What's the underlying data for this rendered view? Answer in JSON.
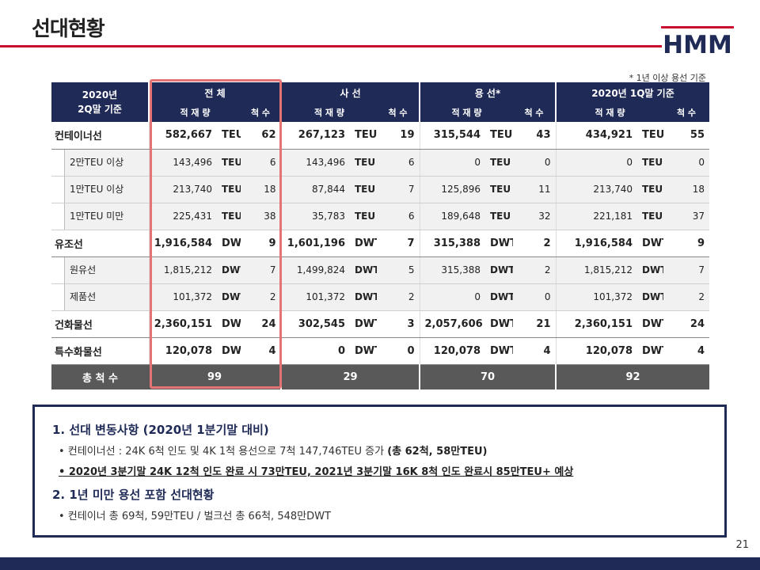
{
  "title": "선대현황",
  "logo_text": "HMM",
  "note": "* 1년 이상 용선 기준",
  "header": {
    "col1_line1": "2020년",
    "col1_line2": "2Q말 기준",
    "groups": [
      "전 체",
      "사 선",
      "용 선*",
      "2020년 1Q말 기준"
    ],
    "sub_capacity": "적 재 량",
    "sub_ships": "척 수"
  },
  "rows": [
    {
      "label": "컨테이너선",
      "type": "major",
      "cells": [
        {
          "v": "582,667",
          "u": "TEU",
          "n": "62"
        },
        {
          "v": "267,123",
          "u": "TEU",
          "n": "19"
        },
        {
          "v": "315,544",
          "u": "TEU",
          "n": "43"
        },
        {
          "v": "434,921",
          "u": "TEU",
          "n": "55"
        }
      ]
    },
    {
      "label": "2만TEU 이상",
      "type": "minor",
      "cells": [
        {
          "v": "143,496",
          "u": "TEU",
          "n": "6"
        },
        {
          "v": "143,496",
          "u": "TEU",
          "n": "6"
        },
        {
          "v": "0",
          "u": "TEU",
          "n": "0"
        },
        {
          "v": "0",
          "u": "TEU",
          "n": "0"
        }
      ]
    },
    {
      "label": "1만TEU 이상",
      "type": "minor",
      "cells": [
        {
          "v": "213,740",
          "u": "TEU",
          "n": "18"
        },
        {
          "v": "87,844",
          "u": "TEU",
          "n": "7"
        },
        {
          "v": "125,896",
          "u": "TEU",
          "n": "11"
        },
        {
          "v": "213,740",
          "u": "TEU",
          "n": "18"
        }
      ]
    },
    {
      "label": "1만TEU 미만",
      "type": "minor",
      "cells": [
        {
          "v": "225,431",
          "u": "TEU",
          "n": "38"
        },
        {
          "v": "35,783",
          "u": "TEU",
          "n": "6"
        },
        {
          "v": "189,648",
          "u": "TEU",
          "n": "32"
        },
        {
          "v": "221,181",
          "u": "TEU",
          "n": "37"
        }
      ]
    },
    {
      "label": "유조선",
      "type": "major",
      "cells": [
        {
          "v": "1,916,584",
          "u": "DWT",
          "n": "9"
        },
        {
          "v": "1,601,196",
          "u": "DWT",
          "n": "7"
        },
        {
          "v": "315,388",
          "u": "DWT",
          "n": "2"
        },
        {
          "v": "1,916,584",
          "u": "DWT",
          "n": "9"
        }
      ]
    },
    {
      "label": "원유선",
      "type": "minor",
      "cells": [
        {
          "v": "1,815,212",
          "u": "DWT",
          "n": "7"
        },
        {
          "v": "1,499,824",
          "u": "DWT",
          "n": "5"
        },
        {
          "v": "315,388",
          "u": "DWT",
          "n": "2"
        },
        {
          "v": "1,815,212",
          "u": "DWT",
          "n": "7"
        }
      ]
    },
    {
      "label": "제품선",
      "type": "minor",
      "cells": [
        {
          "v": "101,372",
          "u": "DWT",
          "n": "2"
        },
        {
          "v": "101,372",
          "u": "DWT",
          "n": "2"
        },
        {
          "v": "0",
          "u": "DWT",
          "n": "0"
        },
        {
          "v": "101,372",
          "u": "DWT",
          "n": "2"
        }
      ]
    },
    {
      "label": "건화물선",
      "type": "major",
      "cells": [
        {
          "v": "2,360,151",
          "u": "DWT",
          "n": "24"
        },
        {
          "v": "302,545",
          "u": "DWT",
          "n": "3"
        },
        {
          "v": "2,057,606",
          "u": "DWT",
          "n": "21"
        },
        {
          "v": "2,360,151",
          "u": "DWT",
          "n": "24"
        }
      ]
    },
    {
      "label": "특수화물선",
      "type": "major",
      "cells": [
        {
          "v": "120,078",
          "u": "DWT",
          "n": "4"
        },
        {
          "v": "0",
          "u": "DWT",
          "n": "0"
        },
        {
          "v": "120,078",
          "u": "DWT",
          "n": "4"
        },
        {
          "v": "120,078",
          "u": "DWT",
          "n": "4"
        }
      ]
    }
  ],
  "total": {
    "label": "총 척 수",
    "values": [
      "99",
      "29",
      "70",
      "92"
    ]
  },
  "section1": {
    "heading": "1. 선대 변동사항 (2020년 1분기말 대비)",
    "bullet1_prefix": "• 컨테이너선 : 24K 6척 인도 및 4K 1척 용선으로 7척 147,746TEU 증가 ",
    "bullet1_bold": "(총 62척, 58만TEU)",
    "bullet2": "• 2020년 3분기말 24K 12척 인도 완료 시 73만TEU, 2021년 3분기말 16K 8척 인도 완료시 85만TEU+ 예상"
  },
  "section2": {
    "heading": "2. 1년 미만 용선 포함 선대현황",
    "bullet1": "• 컨테이너 총 69척, 59만TEU / 벌크선 총 66척, 548만DWT"
  },
  "page_number": "21",
  "colors": {
    "navy": "#1f2a56",
    "accent_red": "#c8102e",
    "highlight": "#e57373",
    "total_bg": "#595959"
  }
}
